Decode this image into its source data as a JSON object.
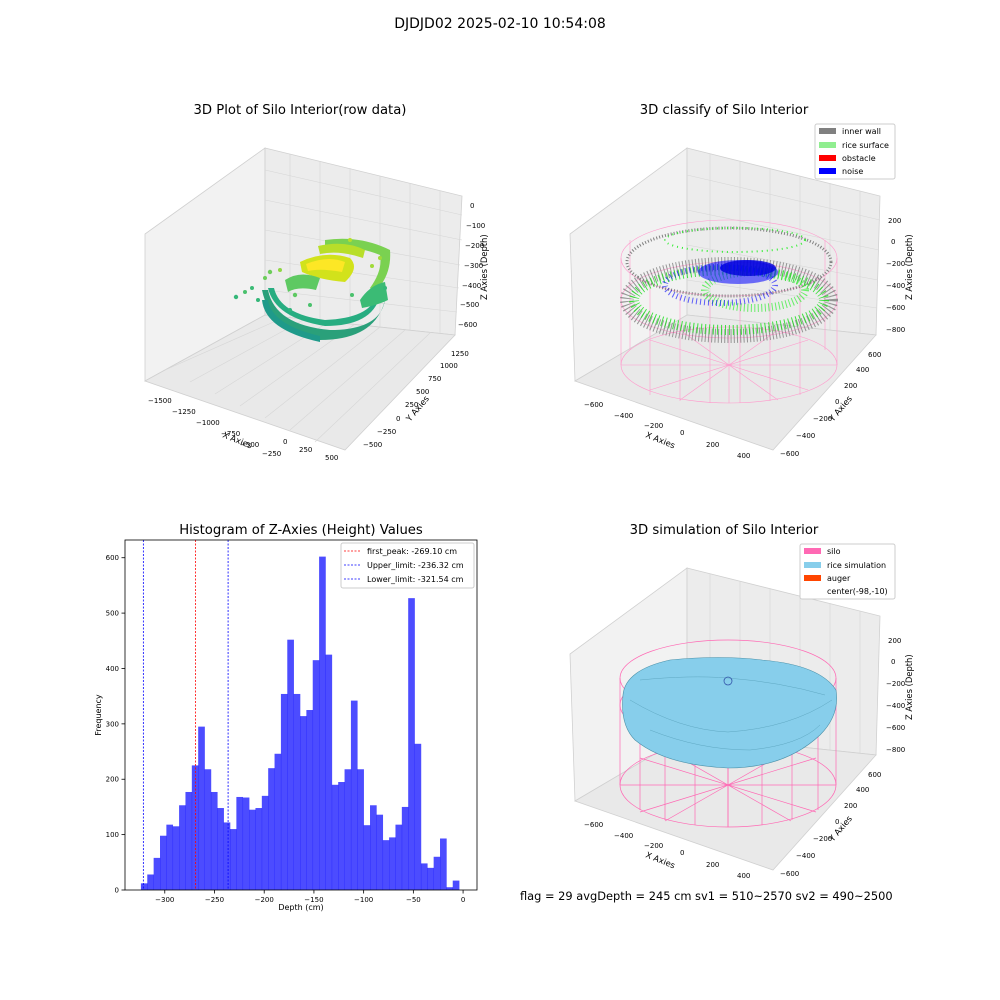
{
  "figure": {
    "suptitle": "DJDJD02 2025-02-10 10:54:08",
    "footer": "flag = 29  avgDepth = 245 cm  sv1 = 510~2570  sv2 = 490~2500"
  },
  "panels": {
    "raw": {
      "title": "3D Plot of Silo Interior(row data)",
      "xlabel": "X Axies",
      "ylabel": "Y Axies",
      "zlabel": "Z Axies (Depth)",
      "xticks": [
        "−1500",
        "−1250",
        "−1000",
        "−750",
        "−500",
        "−250",
        "0",
        "250",
        "500"
      ],
      "yticks": [
        "−500",
        "−250",
        "0",
        "250",
        "500",
        "750",
        "1000",
        "1250"
      ],
      "zticks": [
        "0",
        "−100",
        "−200",
        "−300",
        "−400",
        "−500",
        "−600"
      ]
    },
    "classify": {
      "title": "3D classify of Silo Interior",
      "xlabel": "X Axies",
      "ylabel": "Y Axies",
      "zlabel": "Z Axies (Depth)",
      "xticks": [
        "−600",
        "−400",
        "−200",
        "0",
        "200",
        "400"
      ],
      "yticks": [
        "−600",
        "−400",
        "−200",
        "0",
        "200",
        "400",
        "600"
      ],
      "zticks": [
        "200",
        "0",
        "−200",
        "−400",
        "−600",
        "−800"
      ],
      "legend": [
        {
          "label": "inner wall",
          "color": "#808080"
        },
        {
          "label": "rice surface",
          "color": "#90ee90"
        },
        {
          "label": "obstacle",
          "color": "#ff0000"
        },
        {
          "label": "noise",
          "color": "#0000ff"
        }
      ]
    },
    "simulation": {
      "title": "3D simulation of Silo Interior",
      "xlabel": "X Axies",
      "ylabel": "Y Axies",
      "zlabel": "Z Axies (Depth)",
      "xticks": [
        "−600",
        "−400",
        "−200",
        "0",
        "200",
        "400"
      ],
      "yticks": [
        "−600",
        "−400",
        "−200",
        "0",
        "200",
        "400",
        "600"
      ],
      "zticks": [
        "200",
        "0",
        "−200",
        "−400",
        "−600",
        "−800"
      ],
      "legend": [
        {
          "label": "silo",
          "color": "#ff69b4"
        },
        {
          "label": "rice simulation",
          "color": "#87ceeb"
        },
        {
          "label": "auger",
          "color": "#ff4500"
        },
        {
          "label": "center(-98,-10)",
          "color": "none"
        }
      ]
    }
  },
  "chart_data": [
    {
      "type": "bar",
      "title": "Histogram of Z-Axies (Height) Values",
      "xlabel": "Depth (cm)",
      "ylabel": "Frequency",
      "xlim": [
        -340,
        14
      ],
      "ylim": [
        0,
        632
      ],
      "xticks": [
        -300,
        -250,
        -200,
        -150,
        -100,
        -50,
        0
      ],
      "xtick_labels": [
        "−300",
        "−250",
        "−200",
        "−150",
        "−100",
        "−50",
        "0"
      ],
      "yticks": [
        0,
        100,
        200,
        300,
        400,
        500,
        600
      ],
      "bar_color": "#0000ff",
      "bin_edges_start": -324,
      "bin_width": 6.4,
      "values": [
        12,
        28,
        58,
        98,
        118,
        115,
        153,
        177,
        225,
        295,
        218,
        177,
        148,
        122,
        110,
        168,
        167,
        145,
        148,
        170,
        220,
        246,
        354,
        452,
        354,
        314,
        325,
        415,
        602,
        425,
        190,
        195,
        218,
        342,
        218,
        117,
        153,
        136,
        90,
        95,
        118,
        150,
        527,
        264,
        48,
        40,
        60,
        93,
        5,
        17
      ],
      "vlines": [
        {
          "x": -269.1,
          "color": "#ff0000",
          "label": "first_peak: -269.10 cm"
        },
        {
          "x": -236.32,
          "color": "#0000ff",
          "label": "Upper_limit: -236.32 cm"
        },
        {
          "x": -321.54,
          "color": "#0000ff",
          "label": "Lower_limit: -321.54 cm"
        }
      ]
    }
  ]
}
